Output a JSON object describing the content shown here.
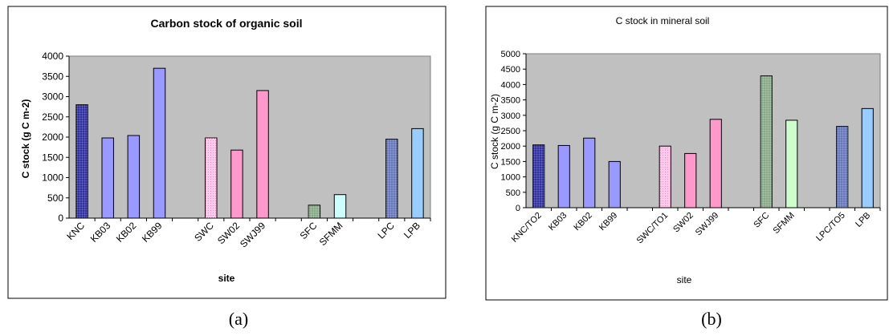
{
  "captions": [
    "(a)",
    "(b)"
  ],
  "chart_data": [
    {
      "type": "bar",
      "title": "Carbon stock of organic soil",
      "xlabel": "site",
      "ylabel": "C stock (g C m-2)",
      "ylim": [
        0,
        4000
      ],
      "yticks": [
        "0",
        "500",
        "1000",
        "1500",
        "2000",
        "2500",
        "3000",
        "3500",
        "4000"
      ],
      "grid": false,
      "legend": "none",
      "plot_background": "#c0c0c0",
      "categories": [
        "KNC",
        "KB03",
        "KB02",
        "KB99",
        "",
        "SWC",
        "SW02",
        "SWJ99",
        "",
        "SFC",
        "SFMM",
        "",
        "LPC",
        "LPB"
      ],
      "values": [
        2800,
        1980,
        2040,
        3700,
        null,
        1980,
        1680,
        3150,
        null,
        320,
        580,
        null,
        1950,
        2210
      ],
      "colors": [
        "#3030a0",
        "#9999ff",
        "#9999ff",
        "#9999ff",
        null,
        "#ffccee",
        "#ff99cc",
        "#ff99cc",
        null,
        "#88aa88",
        "#ccffff",
        null,
        "#6677bb",
        "#99ccff"
      ],
      "patterns": [
        "grid",
        "",
        "",
        "",
        null,
        "dots",
        "",
        "",
        null,
        "grid",
        "",
        null,
        "grid",
        ""
      ]
    },
    {
      "type": "bar",
      "title": "C stock in mineral soil",
      "xlabel": "site",
      "ylabel": "C stock (g C m-2)",
      "ylim": [
        0,
        5000
      ],
      "yticks": [
        "0",
        "500",
        "1000",
        "1500",
        "2000",
        "2500",
        "3000",
        "3500",
        "4000",
        "4500",
        "5000"
      ],
      "grid": false,
      "legend": "none",
      "plot_background": "#c0c0c0",
      "categories": [
        "KNC/TO2",
        "KB03",
        "KB02",
        "KB99",
        "",
        "SWC/TO1",
        "SW02",
        "SWJ99",
        "",
        "SFC",
        "SFMM",
        "",
        "LPC/TO5",
        "LPB"
      ],
      "values": [
        2040,
        2020,
        2260,
        1500,
        null,
        2000,
        1760,
        2870,
        null,
        4280,
        2840,
        null,
        2640,
        3220
      ],
      "colors": [
        "#3030a0",
        "#9999ff",
        "#9999ff",
        "#9999ff",
        null,
        "#ffccee",
        "#ff99cc",
        "#ff99cc",
        null,
        "#88aa88",
        "#ccffcc",
        null,
        "#6677bb",
        "#99ccff"
      ],
      "patterns": [
        "grid",
        "",
        "",
        "",
        null,
        "dots",
        "",
        "",
        null,
        "grid",
        "",
        null,
        "grid",
        ""
      ]
    }
  ]
}
